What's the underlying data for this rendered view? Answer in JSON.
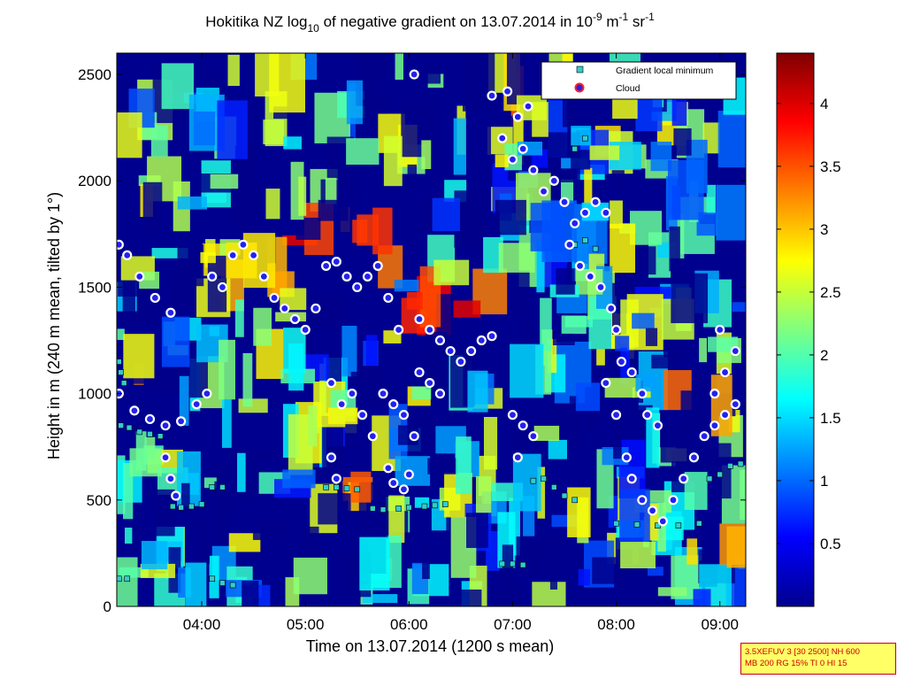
{
  "chart_data": {
    "type": "heatmap",
    "title": {
      "pre": "Hokitika NZ log",
      "sub": "10",
      "mid": " of negative gradient on 13.07.2014 in 10",
      "sup1": "-9",
      "mid2": " m",
      "sup2": "-1",
      "end": " sr",
      "sup3": "-1"
    },
    "xlabel": "Time on 13.07.2014 (1200 s mean)",
    "ylabel": "Height in m (240 m mean, tilted by 1°)",
    "xlim": [
      3.18,
      9.25
    ],
    "ylim": [
      0,
      2600
    ],
    "xticks": [
      {
        "v": 4,
        "label": "04:00"
      },
      {
        "v": 5,
        "label": "05:00"
      },
      {
        "v": 6,
        "label": "06:00"
      },
      {
        "v": 7,
        "label": "07:00"
      },
      {
        "v": 8,
        "label": "08:00"
      },
      {
        "v": 9,
        "label": "09:00"
      }
    ],
    "yticks": [
      0,
      500,
      1000,
      1500,
      2000,
      2500
    ],
    "colorbar": {
      "range": [
        0,
        4.4
      ],
      "ticks": [
        0.5,
        1,
        1.5,
        2,
        2.5,
        3,
        3.5,
        4
      ],
      "colormap": "jet"
    },
    "legend": {
      "position": "top-right",
      "entries": [
        {
          "label": "Gradient local minimum",
          "marker": "square",
          "color": "#33cccc"
        },
        {
          "label": "Cloud",
          "marker": "circle",
          "color": "#ff2222"
        }
      ]
    },
    "cloud_points": [
      [
        3.2,
        1700
      ],
      [
        3.28,
        1650
      ],
      [
        3.4,
        1550
      ],
      [
        3.55,
        1450
      ],
      [
        3.7,
        1380
      ],
      [
        3.2,
        1000
      ],
      [
        3.35,
        920
      ],
      [
        3.5,
        880
      ],
      [
        3.65,
        850
      ],
      [
        3.8,
        870
      ],
      [
        3.95,
        950
      ],
      [
        4.05,
        1000
      ],
      [
        3.65,
        700
      ],
      [
        3.7,
        600
      ],
      [
        3.75,
        520
      ],
      [
        4.1,
        1550
      ],
      [
        4.2,
        1500
      ],
      [
        4.3,
        1650
      ],
      [
        4.4,
        1700
      ],
      [
        4.5,
        1650
      ],
      [
        4.6,
        1550
      ],
      [
        4.7,
        1450
      ],
      [
        4.8,
        1400
      ],
      [
        4.9,
        1350
      ],
      [
        5.0,
        1300
      ],
      [
        5.1,
        1400
      ],
      [
        5.2,
        1600
      ],
      [
        5.3,
        1620
      ],
      [
        5.4,
        1550
      ],
      [
        5.5,
        1500
      ],
      [
        5.6,
        1550
      ],
      [
        5.7,
        1600
      ],
      [
        5.8,
        1450
      ],
      [
        5.9,
        1300
      ],
      [
        5.25,
        1050
      ],
      [
        5.35,
        950
      ],
      [
        5.45,
        1000
      ],
      [
        5.55,
        900
      ],
      [
        5.65,
        800
      ],
      [
        5.75,
        1000
      ],
      [
        5.85,
        950
      ],
      [
        5.95,
        900
      ],
      [
        6.05,
        800
      ],
      [
        5.25,
        700
      ],
      [
        5.3,
        600
      ],
      [
        5.8,
        650
      ],
      [
        5.85,
        580
      ],
      [
        5.95,
        550
      ],
      [
        6.0,
        620
      ],
      [
        6.1,
        1350
      ],
      [
        6.2,
        1300
      ],
      [
        6.3,
        1250
      ],
      [
        6.4,
        1200
      ],
      [
        6.5,
        1150
      ],
      [
        6.6,
        1200
      ],
      [
        6.7,
        1250
      ],
      [
        6.8,
        1270
      ],
      [
        6.1,
        1100
      ],
      [
        6.2,
        1050
      ],
      [
        6.3,
        1000
      ],
      [
        6.05,
        2500
      ],
      [
        6.8,
        2400
      ],
      [
        6.95,
        2420
      ],
      [
        7.05,
        2300
      ],
      [
        7.15,
        2350
      ],
      [
        6.9,
        2200
      ],
      [
        7.0,
        2100
      ],
      [
        7.1,
        2150
      ],
      [
        7.2,
        2050
      ],
      [
        7.3,
        1950
      ],
      [
        7.4,
        2000
      ],
      [
        7.5,
        1900
      ],
      [
        7.6,
        1800
      ],
      [
        7.7,
        1850
      ],
      [
        7.8,
        1900
      ],
      [
        7.9,
        1850
      ],
      [
        7.0,
        900
      ],
      [
        7.1,
        850
      ],
      [
        7.2,
        800
      ],
      [
        7.05,
        700
      ],
      [
        7.55,
        1700
      ],
      [
        7.65,
        1600
      ],
      [
        7.75,
        1550
      ],
      [
        7.85,
        1500
      ],
      [
        7.95,
        1400
      ],
      [
        8.0,
        1300
      ],
      [
        8.05,
        1150
      ],
      [
        8.15,
        1100
      ],
      [
        8.25,
        1000
      ],
      [
        8.3,
        900
      ],
      [
        8.4,
        850
      ],
      [
        7.9,
        1050
      ],
      [
        8.0,
        900
      ],
      [
        8.1,
        700
      ],
      [
        8.15,
        600
      ],
      [
        8.25,
        500
      ],
      [
        8.35,
        450
      ],
      [
        8.45,
        400
      ],
      [
        8.55,
        500
      ],
      [
        8.65,
        600
      ],
      [
        8.75,
        700
      ],
      [
        8.85,
        800
      ],
      [
        8.95,
        850
      ],
      [
        9.05,
        900
      ],
      [
        9.15,
        950
      ],
      [
        8.95,
        1000
      ],
      [
        9.05,
        1100
      ],
      [
        9.15,
        1200
      ],
      [
        9.0,
        1300
      ]
    ],
    "minimum_points": [
      [
        3.22,
        850
      ],
      [
        3.3,
        840
      ],
      [
        3.4,
        820
      ],
      [
        3.5,
        810
      ],
      [
        3.6,
        800
      ],
      [
        3.72,
        470
      ],
      [
        3.8,
        465
      ],
      [
        3.9,
        470
      ],
      [
        4.0,
        480
      ],
      [
        4.1,
        560
      ],
      [
        4.2,
        560
      ],
      [
        5.2,
        560
      ],
      [
        5.3,
        560
      ],
      [
        5.4,
        555
      ],
      [
        5.5,
        550
      ],
      [
        5.65,
        460
      ],
      [
        5.75,
        455
      ],
      [
        5.9,
        460
      ],
      [
        6.0,
        465
      ],
      [
        6.15,
        470
      ],
      [
        6.25,
        475
      ],
      [
        6.35,
        480
      ],
      [
        6.9,
        200
      ],
      [
        7.0,
        200
      ],
      [
        7.1,
        195
      ],
      [
        7.2,
        590
      ],
      [
        7.3,
        600
      ],
      [
        7.4,
        560
      ],
      [
        7.5,
        520
      ],
      [
        7.6,
        500
      ],
      [
        8.0,
        390
      ],
      [
        8.2,
        385
      ],
      [
        8.4,
        380
      ],
      [
        8.6,
        380
      ],
      [
        8.8,
        390
      ],
      [
        8.9,
        600
      ],
      [
        9.0,
        620
      ],
      [
        9.1,
        660
      ],
      [
        9.2,
        670
      ],
      [
        7.6,
        1700
      ],
      [
        7.7,
        1720
      ],
      [
        7.8,
        1680
      ],
      [
        7.6,
        2150
      ],
      [
        7.7,
        2200
      ],
      [
        3.2,
        1150
      ],
      [
        3.22,
        1100
      ],
      [
        3.25,
        1050
      ],
      [
        3.2,
        130
      ],
      [
        3.28,
        130
      ],
      [
        4.1,
        130
      ],
      [
        4.2,
        110
      ],
      [
        4.3,
        100
      ]
    ]
  },
  "info_box": {
    "line1": "3.5XEFUV 3 [30 2500] NH 600",
    "line2": "MB 200 RG 15% TI 0 HI 15"
  },
  "colors": {
    "background": "#ffffff",
    "cloud_fill": "#2222ee",
    "cloud_ring": "#ff2222",
    "minimum_fill": "#33cccc",
    "info_box_bg": "#ffff66",
    "info_box_text": "#cc0000"
  }
}
